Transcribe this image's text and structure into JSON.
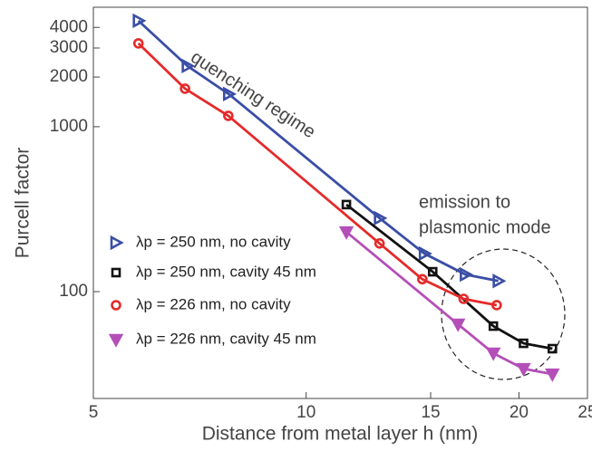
{
  "chart_data": {
    "type": "line",
    "xlabel": "Distance from metal layer h (nm)",
    "ylabel": "Purcell factor",
    "xlim": [
      5,
      25
    ],
    "ylim": [
      22.5,
      5300
    ],
    "xticks": [
      5,
      10,
      15,
      20,
      25
    ],
    "yticks": [
      100,
      1000,
      2000,
      3000,
      4000
    ],
    "xscale": "log",
    "yscale": "log",
    "annotations": [
      "quenching regime",
      "emission to",
      "plasmonic mode"
    ],
    "series": [
      {
        "name": "λp = 250 nm, no cavity",
        "color": "#3a4ea6",
        "marker": "triangle-right",
        "x": [
          5.79,
          6.79,
          7.77,
          12.7,
          14.7,
          16.8,
          18.7
        ],
        "values": [
          4390,
          2335,
          1578,
          279,
          170,
          127,
          116
        ]
      },
      {
        "name": "λp = 250 nm, cavity 45 nm",
        "color": "#111111",
        "marker": "square",
        "x": [
          11.4,
          15.1,
          18.4,
          20.3,
          22.3
        ],
        "values": [
          337,
          132,
          61.8,
          48.6,
          45.1
        ]
      },
      {
        "name": "λp = 226 nm, no cavity",
        "color": "#e52a2a",
        "marker": "circle",
        "x": [
          5.79,
          6.74,
          7.76,
          12.7,
          14.6,
          16.7,
          18.6
        ],
        "values": [
          3200,
          1700,
          1164,
          196,
          119,
          90.4,
          82.8
        ]
      },
      {
        "name": "λp = 226 nm, cavity 45 nm",
        "color": "#b44fb8",
        "marker": "triangle-down",
        "x": [
          11.4,
          16.4,
          18.4,
          20.3,
          22.3
        ],
        "values": [
          230,
          63.4,
          42.3,
          34.1,
          31.6
        ]
      }
    ]
  }
}
